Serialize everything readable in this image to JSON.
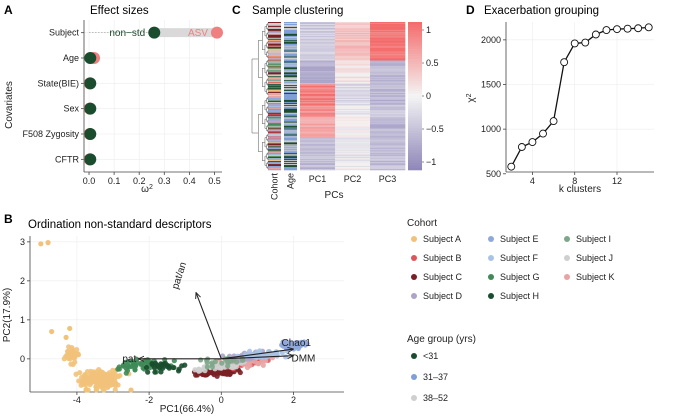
{
  "panelA": {
    "letter": "A",
    "chart_data": {
      "type": "scatter",
      "title": "Effect sizes",
      "xlabel": "ω²",
      "ylabel": "Covariates",
      "xlim": [
        -0.02,
        0.53
      ],
      "xticks": [
        0.0,
        0.1,
        0.2,
        0.3,
        0.4,
        0.5
      ],
      "xtick_labels": [
        "0.0",
        "0.1",
        "0.2",
        "0.3",
        "0.4",
        "0.5"
      ],
      "covariates": [
        "Subject",
        "Age",
        "State(BIE)",
        "Sex",
        "F508 Zygosity",
        "CFTR"
      ],
      "series": [
        {
          "name": "non-std",
          "color": "#1a4d2e",
          "values": [
            0.26,
            0.005,
            0.005,
            0.005,
            0.005,
            0.005
          ]
        },
        {
          "name": "ASV",
          "color": "#f08080",
          "values": [
            0.51,
            0.02,
            0.003,
            0.003,
            0.003,
            0.003
          ]
        }
      ],
      "annotations": [
        "non−std",
        "ASV"
      ]
    }
  },
  "panelB": {
    "letter": "B",
    "chart_data": {
      "type": "scatter",
      "title": "Ordination non-standard descriptors",
      "xlabel": "PC1(66.4%)",
      "ylabel": "PC2(17.9%)",
      "xlim": [
        -5.3,
        3.4
      ],
      "ylim": [
        -0.85,
        3.15
      ],
      "xticks": [
        -4,
        -2,
        0,
        2
      ],
      "yticks": [
        0,
        1,
        2,
        3
      ],
      "arrows": [
        {
          "label": "pat/an",
          "x": -0.7,
          "y": 1.7
        },
        {
          "label": "pat",
          "x": -2.3,
          "y": 0.0
        },
        {
          "label": "Chao1",
          "x": 2.0,
          "y": 0.25
        },
        {
          "label": "DMM",
          "x": 2.0,
          "y": 0.08
        }
      ],
      "clusters": [
        {
          "group": "Subject A",
          "cx": -3.3,
          "cy": -0.55,
          "sx": 0.9,
          "sy": 0.35,
          "n": 170
        },
        {
          "group": "Subject A",
          "cx": -4.1,
          "cy": 0.1,
          "sx": 0.3,
          "sy": 0.35,
          "n": 40
        },
        {
          "group": "Subject G",
          "cx": -2.2,
          "cy": -0.15,
          "sx": 1.1,
          "sy": 0.25,
          "n": 55
        },
        {
          "group": "Subject H",
          "cx": -1.5,
          "cy": -0.2,
          "sx": 0.9,
          "sy": 0.25,
          "n": 25
        },
        {
          "group": "Subject C",
          "cx": -0.1,
          "cy": -0.35,
          "sx": 0.9,
          "sy": 0.12,
          "n": 60
        },
        {
          "group": "Subject B",
          "cx": 0.6,
          "cy": -0.1,
          "sx": 0.9,
          "sy": 0.15,
          "n": 40
        },
        {
          "group": "Subject K",
          "cx": 0.5,
          "cy": -0.1,
          "sx": 1.1,
          "sy": 0.15,
          "n": 45
        },
        {
          "group": "Subject J",
          "cx": 0.0,
          "cy": -0.2,
          "sx": 1.2,
          "sy": 0.15,
          "n": 35
        },
        {
          "group": "Subject D",
          "cx": 0.8,
          "cy": 0.05,
          "sx": 1.0,
          "sy": 0.15,
          "n": 40
        },
        {
          "group": "Subject F",
          "cx": 1.2,
          "cy": 0.1,
          "sx": 1.0,
          "sy": 0.15,
          "n": 35
        },
        {
          "group": "Subject E",
          "cx": 2.0,
          "cy": 0.35,
          "sx": 0.7,
          "sy": 0.2,
          "n": 40
        },
        {
          "group": "Subject I",
          "cx": 0.0,
          "cy": -0.1,
          "sx": 1.0,
          "sy": 0.2,
          "n": 20
        }
      ],
      "extra_points": [
        {
          "group": "Subject A",
          "x": -5.0,
          "y": 2.95
        },
        {
          "group": "Subject A",
          "x": -4.8,
          "y": 2.98
        },
        {
          "group": "Subject A",
          "x": -4.7,
          "y": 0.7
        },
        {
          "group": "Subject A",
          "x": -4.3,
          "y": 0.55
        },
        {
          "group": "Subject A",
          "x": -4.2,
          "y": 0.78
        },
        {
          "group": "Subject A",
          "x": -2.5,
          "y": -0.8
        }
      ]
    }
  },
  "panelC": {
    "letter": "C",
    "chart_data": {
      "type": "heatmap",
      "title": "Sample clustering",
      "xlabel": "PCs",
      "columns": [
        "PC1",
        "PC2",
        "PC3"
      ],
      "side_labels": [
        "Cohort",
        "Age"
      ],
      "colorbar": {
        "min": -1,
        "max": 1,
        "ticks": [
          1,
          0.5,
          0,
          -0.5,
          -1
        ],
        "tick_labels": [
          "1",
          "0.5",
          "0",
          "−0.5",
          "−1"
        ],
        "low_color": "#8e86b8",
        "mid_color": "#f4f4f4",
        "high_color": "#f46b6b"
      },
      "row_blocks": [
        {
          "frac": 0.26,
          "values": [
            -0.35,
            0.35,
            0.95
          ]
        },
        {
          "frac": 0.16,
          "values": [
            -0.6,
            0.1,
            -0.55
          ]
        },
        {
          "frac": 0.14,
          "values": [
            0.85,
            -0.25,
            -0.55
          ]
        },
        {
          "frac": 0.08,
          "values": [
            0.75,
            -0.1,
            -0.4
          ]
        },
        {
          "frac": 0.14,
          "values": [
            0.55,
            0.0,
            -0.6
          ]
        },
        {
          "frac": 0.22,
          "values": [
            -0.5,
            -0.1,
            -0.5
          ]
        }
      ]
    }
  },
  "panelD": {
    "letter": "D",
    "chart_data": {
      "type": "line",
      "title": "Exacerbation grouping",
      "xlabel": "k clusters",
      "ylabel": "χ²",
      "xlim": [
        1.5,
        15.5
      ],
      "ylim": [
        520,
        2200
      ],
      "xticks": [
        4,
        8,
        12
      ],
      "yticks": [
        500,
        1000,
        1500,
        2000
      ],
      "x": [
        2,
        3,
        4,
        5,
        6,
        7,
        8,
        9,
        10,
        11,
        12,
        13,
        14,
        15
      ],
      "y": [
        580,
        800,
        855,
        950,
        1090,
        1750,
        1960,
        1970,
        2060,
        2110,
        2120,
        2125,
        2130,
        2140
      ]
    }
  },
  "legend": {
    "cohort_title": "Cohort",
    "cohort": [
      {
        "label": "Subject A",
        "color": "#f2c27a"
      },
      {
        "label": "Subject B",
        "color": "#e0555a"
      },
      {
        "label": "Subject C",
        "color": "#7a1f24"
      },
      {
        "label": "Subject D",
        "color": "#aea3c9"
      },
      {
        "label": "Subject E",
        "color": "#8fa8dc"
      },
      {
        "label": "Subject F",
        "color": "#a9c3e6"
      },
      {
        "label": "Subject G",
        "color": "#3f8a56"
      },
      {
        "label": "Subject H",
        "color": "#1a4d2e"
      },
      {
        "label": "Subject I",
        "color": "#7ea68a"
      },
      {
        "label": "Subject J",
        "color": "#cfcfcf"
      },
      {
        "label": "Subject K",
        "color": "#e8a3a3"
      }
    ],
    "age_title": "Age group (yrs)",
    "age": [
      {
        "label": "<31",
        "color": "#1a4d2e"
      },
      {
        "label": "31–37",
        "color": "#7f9fd8"
      },
      {
        "label": "38–52",
        "color": "#cfcfcf"
      }
    ]
  }
}
